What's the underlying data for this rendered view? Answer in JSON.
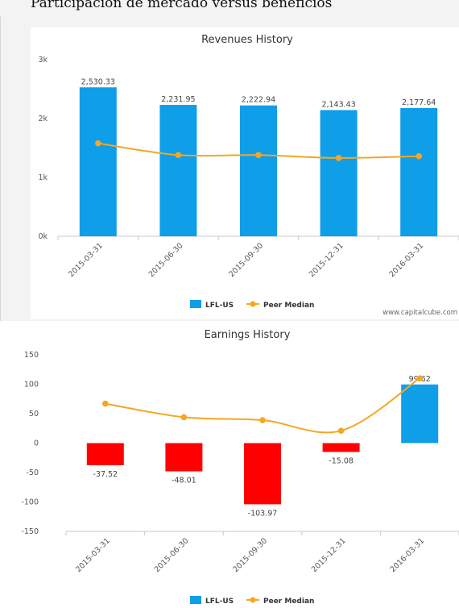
{
  "page": {
    "title": "Participación de mercado versus beneficios",
    "credit": "www.capitalcube.com"
  },
  "chart_data": [
    {
      "type": "bar",
      "title": "Revenues History",
      "categories": [
        "2015-03-31",
        "2015-06-30",
        "2015-09-30",
        "2015-12-31",
        "2016-03-31"
      ],
      "series": [
        {
          "name": "LFL-US",
          "type": "bar",
          "values": [
            2530.33,
            2231.95,
            2222.94,
            2143.43,
            2177.64
          ],
          "color": "#0f9ee8"
        },
        {
          "name": "Peer Median",
          "type": "line",
          "values": [
            1580,
            1380,
            1380,
            1330,
            1360
          ],
          "color": "#f5a623"
        }
      ],
      "data_labels": [
        "2,530.33",
        "2,231.95",
        "2,222.94",
        "2,143.43",
        "2,177.64"
      ],
      "yticks": [
        "0k",
        "1k",
        "2k",
        "3k"
      ],
      "ylim": [
        0,
        3000
      ],
      "legend": "bottom"
    },
    {
      "type": "bar",
      "title": "Earnings History",
      "categories": [
        "2015-03-31",
        "2015-06-30",
        "2015-09-30",
        "2015-12-31",
        "2016-03-31"
      ],
      "series": [
        {
          "name": "LFL-US",
          "type": "bar",
          "values": [
            -37.52,
            -48.01,
            -103.97,
            -15.08,
            99.62
          ],
          "color_pos": "#0f9ee8",
          "color_neg": "#ff0000"
        },
        {
          "name": "Peer Median",
          "type": "line",
          "values": [
            67,
            44,
            39,
            21,
            110
          ],
          "color": "#f5a623"
        }
      ],
      "data_labels": [
        "-37.52",
        "-48.01",
        "-103.97",
        "-15.08",
        "99.62"
      ],
      "yticks": [
        "-150",
        "-100",
        "-50",
        "0",
        "50",
        "100",
        "150"
      ],
      "ylim": [
        -150,
        150
      ],
      "legend": "bottom"
    }
  ]
}
